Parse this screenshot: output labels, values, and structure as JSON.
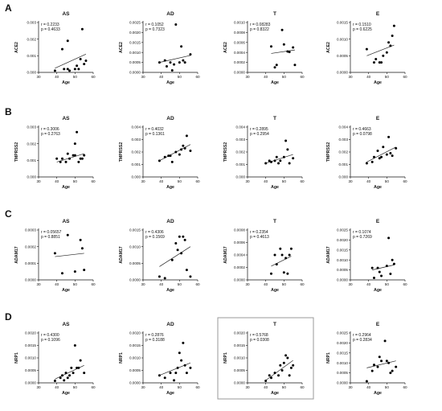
{
  "panel_labels": [
    "A",
    "B",
    "C",
    "D"
  ],
  "highlight": {
    "row": 3,
    "col": 2
  },
  "chart_data": [
    {
      "type": "scatter",
      "title": "AS",
      "xlabel": "Age",
      "ylabel": "ACE2",
      "xlim": [
        30,
        60
      ],
      "ylim": [
        0,
        0.003
      ],
      "xticks": [
        30,
        40,
        50,
        60
      ],
      "yticks": [
        0,
        0.001,
        0.002,
        0.003
      ],
      "ytick_labels": [
        "0.000",
        "0.001",
        "0.002",
        "0.003"
      ],
      "stat_r": "r = 0.2233",
      "stat_p": "p = 0.4633",
      "x": [
        39,
        43,
        44,
        46,
        46,
        47,
        50,
        51,
        52,
        53,
        54,
        55,
        56
      ],
      "y": [
        0.0001,
        0.0014,
        0.0002,
        0.0002,
        0.0019,
        0.0001,
        0.0002,
        0.0004,
        0.0002,
        0.0008,
        0.0026,
        0.0005,
        0.0007
      ],
      "fit": [
        0.00025,
        0.0011
      ]
    },
    {
      "type": "scatter",
      "title": "AD",
      "xlabel": "Age",
      "ylabel": "ACE2",
      "xlim": [
        30,
        60
      ],
      "ylim": [
        0,
        0.0025
      ],
      "xticks": [
        30,
        40,
        50,
        60
      ],
      "yticks": [
        0,
        0.0005,
        0.001,
        0.0015,
        0.002,
        0.0025
      ],
      "ytick_labels": [
        "0.0000",
        "0.0005",
        "0.0010",
        "0.0015",
        "0.0020",
        "0.0025"
      ],
      "stat_r": "r = 0.1052",
      "stat_p": "p = 0.7323",
      "x": [
        39,
        42,
        43,
        45,
        46,
        47,
        48,
        50,
        51,
        52,
        53,
        56
      ],
      "y": [
        0.0005,
        0.0006,
        0.0003,
        0.0005,
        0.0001,
        0.0004,
        0.0024,
        0.0005,
        0.0013,
        0.0006,
        0.0005,
        0.0009
      ],
      "fit": [
        0.0005,
        0.00085
      ]
    },
    {
      "type": "scatter",
      "title": "T",
      "xlabel": "Age",
      "ylabel": "ACE2",
      "xlim": [
        30,
        60
      ],
      "ylim": [
        0,
        0.001
      ],
      "xticks": [
        30,
        40,
        50,
        60
      ],
      "yticks": [
        0,
        0.0002,
        0.0004,
        0.0006,
        0.0008,
        0.001
      ],
      "ytick_labels": [
        "0.0000",
        "0.0002",
        "0.0004",
        "0.0006",
        "0.0008",
        "0.0010"
      ],
      "stat_r": "r = 0.08283",
      "stat_p": "p = 0.8322",
      "x": [
        43,
        45,
        46,
        49,
        50,
        52,
        53,
        55,
        56
      ],
      "y": [
        0.00052,
        0.0001,
        0.00015,
        0.00085,
        0.00056,
        0.00042,
        0.00041,
        0.0005,
        0.00015
      ],
      "fit": [
        0.00038,
        0.00045
      ]
    },
    {
      "type": "scatter",
      "title": "E",
      "xlabel": "Age",
      "ylabel": "ACE2",
      "xlim": [
        30,
        60
      ],
      "ylim": [
        0,
        0.0015
      ],
      "xticks": [
        30,
        40,
        50,
        60
      ],
      "yticks": [
        0,
        0.0005,
        0.001,
        0.0015
      ],
      "ytick_labels": [
        "0.0000",
        "0.0005",
        "0.0010",
        "0.0015"
      ],
      "stat_r": "r = 0.1510",
      "stat_p": "p = 0.6225",
      "x": [
        39,
        43,
        44,
        46,
        47,
        48,
        50,
        51,
        52,
        53,
        54
      ],
      "y": [
        0.0007,
        0.0003,
        0.0004,
        0.0003,
        0.0003,
        0.0005,
        0.0006,
        0.0009,
        0.0008,
        0.0011,
        0.0014
      ],
      "fit": [
        0.0005,
        0.00082
      ]
    },
    {
      "type": "scatter",
      "title": "AS",
      "xlabel": "Age",
      "ylabel": "TMPRSS2",
      "xlim": [
        30,
        60
      ],
      "ylim": [
        0,
        0.003
      ],
      "xticks": [
        30,
        40,
        50,
        60
      ],
      "yticks": [
        0,
        0.001,
        0.002,
        0.003
      ],
      "ytick_labels": [
        "0.000",
        "0.001",
        "0.002",
        "0.003"
      ],
      "stat_r": "r = 0.3006",
      "stat_p": "p = 0.2763",
      "x": [
        40,
        42,
        43,
        45,
        46,
        47,
        49,
        50,
        50,
        51,
        52,
        53,
        54,
        55
      ],
      "y": [
        0.0011,
        0.0009,
        0.0011,
        0.0009,
        0.0014,
        0.0011,
        0.0013,
        0.0013,
        0.002,
        0.0027,
        0.0009,
        0.0011,
        0.0011,
        0.0013
      ],
      "fit": [
        0.0009,
        0.0014
      ]
    },
    {
      "type": "scatter",
      "title": "AD",
      "xlabel": "Age",
      "ylabel": "TMPRSS2",
      "xlim": [
        30,
        60
      ],
      "ylim": [
        0,
        0.004
      ],
      "xticks": [
        30,
        40,
        50,
        60
      ],
      "yticks": [
        0,
        0.001,
        0.002,
        0.003,
        0.004
      ],
      "ytick_labels": [
        "0.000",
        "0.001",
        "0.002",
        "0.003",
        "0.004"
      ],
      "stat_r": "r = 0.4032",
      "stat_p": "p = 0.1361",
      "x": [
        39,
        42,
        44,
        45,
        46,
        48,
        50,
        51,
        52,
        53,
        54,
        56
      ],
      "y": [
        0.0013,
        0.0016,
        0.0017,
        0.0017,
        0.0012,
        0.002,
        0.0018,
        0.0022,
        0.0025,
        0.0023,
        0.0033,
        0.0021
      ],
      "fit": [
        0.0013,
        0.0026
      ]
    },
    {
      "type": "scatter",
      "title": "T",
      "xlabel": "Age",
      "ylabel": "TMPRSS2",
      "xlim": [
        30,
        60
      ],
      "ylim": [
        0,
        0.004
      ],
      "xticks": [
        30,
        40,
        50,
        60
      ],
      "yticks": [
        0,
        0.001,
        0.002,
        0.003,
        0.004
      ],
      "ytick_labels": [
        "0.000",
        "0.001",
        "0.002",
        "0.003",
        "0.004"
      ],
      "stat_r": "r = 0.2895",
      "stat_p": "p = 0.2954",
      "x": [
        40,
        42,
        43,
        45,
        46,
        47,
        48,
        50,
        51,
        52,
        53,
        55
      ],
      "y": [
        0.0011,
        0.0013,
        0.0012,
        0.0013,
        0.0016,
        0.0011,
        0.0013,
        0.0016,
        0.0029,
        0.0022,
        0.0011,
        0.0015
      ],
      "fit": [
        0.0011,
        0.0018
      ]
    },
    {
      "type": "scatter",
      "title": "E",
      "xlabel": "Age",
      "ylabel": "TMPRSS2",
      "xlim": [
        30,
        60
      ],
      "ylim": [
        0,
        0.004
      ],
      "xticks": [
        30,
        40,
        50,
        60
      ],
      "yticks": [
        0,
        0.001,
        0.002,
        0.003,
        0.004
      ],
      "ytick_labels": [
        "0.000",
        "0.001",
        "0.002",
        "0.003",
        "0.004"
      ],
      "stat_r": "r = 0.4663",
      "stat_p": "p = 0.0798",
      "x": [
        39,
        42,
        43,
        45,
        46,
        47,
        48,
        50,
        51,
        52,
        53,
        55
      ],
      "y": [
        0.0011,
        0.0012,
        0.0016,
        0.0021,
        0.0015,
        0.0016,
        0.0024,
        0.0018,
        0.0032,
        0.0019,
        0.0017,
        0.0023
      ],
      "fit": [
        0.0012,
        0.0024
      ]
    },
    {
      "type": "scatter",
      "title": "AS",
      "xlabel": "Age",
      "ylabel": "ADAM17",
      "xlim": [
        30,
        60
      ],
      "ylim": [
        0,
        0.0003
      ],
      "xticks": [
        30,
        40,
        50,
        60
      ],
      "yticks": [
        0,
        0.0001,
        0.0002,
        0.0003
      ],
      "ytick_labels": [
        "0.0000",
        "0.0001",
        "0.0002",
        "0.0003"
      ],
      "stat_r": "r = 0.05657",
      "stat_p": "p = 0.8851",
      "x": [
        39,
        43,
        46,
        50,
        53,
        54,
        55
      ],
      "y": [
        0.00016,
        4e-05,
        0.00027,
        5e-05,
        0.00024,
        0.00019,
        6e-05
      ],
      "fit": [
        0.00014,
        0.00016
      ]
    },
    {
      "type": "scatter",
      "title": "AD",
      "xlabel": "Age",
      "ylabel": "ADAM17",
      "xlim": [
        30,
        60
      ],
      "ylim": [
        0,
        0.0015
      ],
      "xticks": [
        30,
        40,
        50,
        60
      ],
      "yticks": [
        0,
        0.0005,
        0.001,
        0.0015
      ],
      "ytick_labels": [
        "0.0000",
        "0.0005",
        "0.0010",
        "0.0015"
      ],
      "stat_r": "r = 0.4306",
      "stat_p": "p = 0.1569",
      "x": [
        39,
        42,
        46,
        48,
        49,
        50,
        51,
        52,
        53,
        54,
        56
      ],
      "y": [
        0.0001,
        5e-05,
        0.0006,
        0.0011,
        0.0009,
        0.0013,
        0.0008,
        0.0013,
        0.0012,
        0.0003,
        0.0001
      ],
      "fit": [
        0.0004,
        0.001
      ]
    },
    {
      "type": "scatter",
      "title": "T",
      "xlabel": "Age",
      "ylabel": "ADAM17",
      "xlim": [
        30,
        60
      ],
      "ylim": [
        0,
        0.0008
      ],
      "xticks": [
        30,
        40,
        50,
        60
      ],
      "yticks": [
        0,
        0.0002,
        0.0004,
        0.0006,
        0.0008
      ],
      "ytick_labels": [
        "0.0000",
        "0.0002",
        "0.0004",
        "0.0006",
        "0.0008"
      ],
      "stat_r": "r = 0.2354",
      "stat_p": "p = 0.4613",
      "x": [
        43,
        45,
        46,
        48,
        49,
        50,
        51,
        52,
        53,
        54
      ],
      "y": [
        0.0001,
        0.0004,
        0.00025,
        0.0005,
        0.0004,
        0.00012,
        0.00035,
        0.0001,
        0.0004,
        0.0005
      ],
      "fit": [
        0.00022,
        0.00038
      ]
    },
    {
      "type": "scatter",
      "title": "E",
      "xlabel": "Age",
      "ylabel": "ADAM17",
      "xlim": [
        30,
        60
      ],
      "ylim": [
        0,
        0.0025
      ],
      "xticks": [
        30,
        40,
        50,
        60
      ],
      "yticks": [
        0,
        0.0005,
        0.001,
        0.0015,
        0.002,
        0.0025
      ],
      "ytick_labels": [
        "0.0000",
        "0.0005",
        "0.0010",
        "0.0015",
        "0.0020",
        "0.0025"
      ],
      "stat_r": "r = 0.1074",
      "stat_p": "p = 0.7269",
      "x": [
        42,
        43,
        45,
        46,
        47,
        50,
        51,
        52,
        53,
        54
      ],
      "y": [
        0.0006,
        0.0001,
        0.0006,
        0.0004,
        0.0002,
        0.0007,
        0.0021,
        0.0003,
        0.001,
        0.0008
      ],
      "fit": [
        0.0005,
        0.00075
      ]
    },
    {
      "type": "scatter",
      "title": "AS",
      "xlabel": "Age",
      "ylabel": "NRP1",
      "xlim": [
        30,
        60
      ],
      "ylim": [
        0,
        0.002
      ],
      "xticks": [
        30,
        40,
        50,
        60
      ],
      "yticks": [
        0,
        0.0005,
        0.001,
        0.0015,
        0.002
      ],
      "ytick_labels": [
        "0.0000",
        "0.0005",
        "0.0010",
        "0.0015",
        "0.0020"
      ],
      "stat_r": "r = 0.4300",
      "stat_p": "p = 0.1096",
      "x": [
        39,
        42,
        43,
        44,
        45,
        46,
        47,
        48,
        49,
        50,
        51,
        52,
        53,
        55
      ],
      "y": [
        8e-05,
        0.0002,
        0.0003,
        0.0001,
        0.0004,
        0.0002,
        0.0003,
        0.0006,
        0.0004,
        0.0015,
        0.0006,
        0.0006,
        0.0009,
        0.0004
      ],
      "fit": [
        0.00015,
        0.0007
      ]
    },
    {
      "type": "scatter",
      "title": "AD",
      "xlabel": "Age",
      "ylabel": "NRP1",
      "xlim": [
        30,
        60
      ],
      "ylim": [
        0,
        0.002
      ],
      "xticks": [
        30,
        40,
        50,
        60
      ],
      "yticks": [
        0,
        0.0005,
        0.001,
        0.0015,
        0.002
      ],
      "ytick_labels": [
        "0.0000",
        "0.0005",
        "0.0010",
        "0.0015",
        "0.0020"
      ],
      "stat_r": "r = 0.2876",
      "stat_p": "p = 0.3188",
      "x": [
        39,
        42,
        45,
        47,
        48,
        49,
        50,
        51,
        52,
        53,
        54,
        56
      ],
      "y": [
        0.0003,
        0.0002,
        0.0004,
        0.0001,
        0.0004,
        0.0006,
        0.0012,
        0.0009,
        0.0016,
        0.0007,
        0.0004,
        0.0006
      ],
      "fit": [
        0.0003,
        0.0008
      ]
    },
    {
      "type": "scatter",
      "title": "T",
      "xlabel": "Age",
      "ylabel": "NRP1",
      "xlim": [
        30,
        60
      ],
      "ylim": [
        0,
        0.002
      ],
      "xticks": [
        30,
        40,
        50,
        60
      ],
      "yticks": [
        0,
        0.0005,
        0.001,
        0.0015,
        0.002
      ],
      "ytick_labels": [
        "0.0000",
        "0.0005",
        "0.0010",
        "0.0015",
        "0.0020"
      ],
      "stat_r": "r = 0.5768",
      "stat_p": "p = 0.0308",
      "x": [
        40,
        42,
        43,
        45,
        47,
        48,
        49,
        50,
        51,
        52,
        53,
        54,
        55
      ],
      "y": [
        8e-05,
        0.0003,
        0.0002,
        0.0004,
        0.0003,
        0.0007,
        0.0005,
        0.0008,
        0.0011,
        0.001,
        0.0003,
        0.0006,
        0.0007
      ],
      "fit": [
        0.0001,
        0.0009
      ]
    },
    {
      "type": "scatter",
      "title": "E",
      "xlabel": "Age",
      "ylabel": "NRP1",
      "xlim": [
        30,
        60
      ],
      "ylim": [
        0,
        0.0025
      ],
      "xticks": [
        30,
        40,
        50,
        60
      ],
      "yticks": [
        0,
        0.0005,
        0.001,
        0.0015,
        0.002,
        0.0025
      ],
      "ytick_labels": [
        "0.0000",
        "0.0005",
        "0.0010",
        "0.0015",
        "0.0020",
        "0.0025"
      ],
      "stat_r": "r = 0.2964",
      "stat_p": "p = 0.2834",
      "x": [
        39,
        42,
        43,
        45,
        46,
        47,
        49,
        50,
        51,
        52,
        53,
        55
      ],
      "y": [
        8e-05,
        0.0006,
        0.0009,
        0.0008,
        0.0013,
        0.0011,
        0.0021,
        0.0011,
        0.001,
        0.0005,
        0.0006,
        0.0008
      ],
      "fit": [
        0.00075,
        0.0011
      ]
    }
  ]
}
